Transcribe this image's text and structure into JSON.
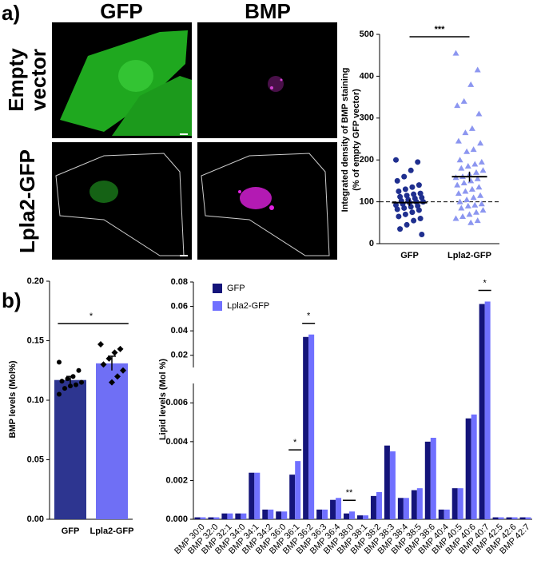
{
  "panels": {
    "a": "a)",
    "b": "b)"
  },
  "images": {
    "columns": [
      "GFP",
      "BMP"
    ],
    "rows": [
      [
        "Empty",
        "vector"
      ],
      [
        "Lpla2-GFP"
      ]
    ]
  },
  "chart_data": [
    {
      "type": "strip",
      "ylabel": [
        "Integrated density of BMP staining",
        "(% of empty GFP vector)"
      ],
      "categories": [
        "GFP",
        "Lpla2-GFP"
      ],
      "groups": [
        {
          "color": "#1f2f8f",
          "marker": "circle",
          "mean": 98,
          "error": 8,
          "values": [
            200,
            195,
            175,
            160,
            150,
            140,
            135,
            130,
            125,
            120,
            118,
            115,
            112,
            110,
            108,
            105,
            102,
            100,
            100,
            98,
            95,
            92,
            90,
            88,
            85,
            82,
            80,
            75,
            70,
            65,
            60,
            55,
            45,
            35,
            22
          ]
        },
        {
          "color": "#8c96f0",
          "marker": "triangle",
          "mean": 160,
          "error": 12,
          "values": [
            455,
            415,
            380,
            340,
            330,
            310,
            275,
            265,
            245,
            240,
            225,
            220,
            200,
            195,
            190,
            185,
            180,
            175,
            170,
            165,
            160,
            158,
            155,
            150,
            145,
            140,
            135,
            130,
            125,
            120,
            115,
            110,
            105,
            100,
            95,
            92,
            90,
            85,
            80,
            75,
            70,
            65,
            60,
            55,
            50
          ]
        }
      ],
      "reference": 100,
      "significance": "***",
      "ylim": [
        0,
        500
      ],
      "yticks": [
        0,
        100,
        200,
        300,
        400,
        500
      ]
    },
    {
      "type": "bar",
      "ylabel": "BMP levels (Mol%)",
      "categories": [
        "GFP",
        "Lpla2-GFP"
      ],
      "values": [
        0.117,
        0.131
      ],
      "errors": [
        0.003,
        0.006
      ],
      "colors": [
        "#2d3590",
        "#6f6ff5"
      ],
      "points": [
        [
          0.132,
          0.125,
          0.12,
          0.118,
          0.116,
          0.115,
          0.113,
          0.112,
          0.11,
          0.105
        ],
        [
          0.147,
          0.143,
          0.14,
          0.135,
          0.13,
          0.125,
          0.12,
          0.115
        ]
      ],
      "significance": "*",
      "ylim": [
        0,
        0.2
      ],
      "yticks": [
        {
          "value": 0,
          "label": "0.00"
        },
        {
          "value": 0.05,
          "label": "0.05"
        },
        {
          "value": 0.1,
          "label": "0.10"
        },
        {
          "value": 0.15,
          "label": "0.15"
        },
        {
          "value": 0.2,
          "label": "0.20"
        }
      ]
    },
    {
      "type": "grouped-bar",
      "ylabel": "Lipid levels (Mol %)",
      "categories": [
        "BMP 30:0",
        "BMP 32:0",
        "BMP 32:1",
        "BMP 34:0",
        "BMP 34:1",
        "BMP 34:2",
        "BMP 36:0",
        "BMP 36:1",
        "BMP 36:2",
        "BMP 36:3",
        "BMP 36:4",
        "BMP 38:0",
        "BMP 38:1",
        "BMP 38:2",
        "BMP 38:3",
        "BMP 38:4",
        "BMP 38:5",
        "BMP 38:6",
        "BMP 40:4",
        "BMP 40:5",
        "BMP 40:6",
        "BMP 40:7",
        "BMP 42:5",
        "BMP 42:6",
        "BMP 42:7"
      ],
      "series": [
        {
          "name": "GFP",
          "color": "#14147a",
          "values": [
            0.0001,
            0.0001,
            0.0003,
            0.0003,
            0.0024,
            0.0005,
            0.0004,
            0.0023,
            0.035,
            0.0005,
            0.001,
            0.0003,
            0.0002,
            0.0012,
            0.0038,
            0.0011,
            0.0015,
            0.004,
            0.0005,
            0.0016,
            0.0052,
            0.062,
            0.0001,
            0.0001,
            0.0001
          ]
        },
        {
          "name": "Lpla2-GFP",
          "color": "#7070ff",
          "values": [
            0.0001,
            0.0001,
            0.0003,
            0.0003,
            0.0024,
            0.0005,
            0.0004,
            0.003,
            0.037,
            0.0005,
            0.0011,
            0.0004,
            0.0002,
            0.0014,
            0.0035,
            0.0011,
            0.0016,
            0.0042,
            0.0005,
            0.0016,
            0.0054,
            0.064,
            0.0001,
            0.0001,
            0.0001
          ]
        }
      ],
      "annotations": [
        {
          "text": "*",
          "at": "BMP 36:1"
        },
        {
          "text": "*",
          "at": "BMP 36:2"
        },
        {
          "text": "**",
          "at": "BMP 38:0"
        },
        {
          "text": "*",
          "at": "BMP 40:7"
        }
      ],
      "ylim": [
        0,
        0.08
      ],
      "ybreak": [
        0.007,
        0.01
      ],
      "yticks": [
        {
          "value": 0,
          "label": "0.000"
        },
        {
          "value": 0.002,
          "label": "0.002"
        },
        {
          "value": 0.004,
          "label": "0.004"
        },
        {
          "value": 0.006,
          "label": "0.006"
        },
        {
          "value": 0.02,
          "label": "0.02"
        },
        {
          "value": 0.04,
          "label": "0.04"
        },
        {
          "value": 0.06,
          "label": "0.06"
        },
        {
          "value": 0.08,
          "label": "0.08"
        }
      ]
    }
  ]
}
